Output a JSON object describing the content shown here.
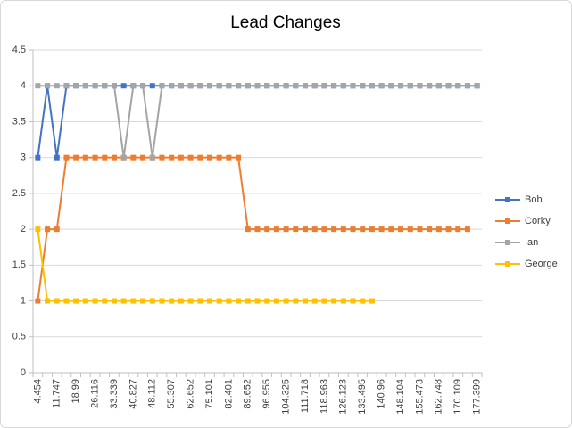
{
  "chart_data": {
    "type": "line",
    "title": "Lead Changes",
    "categories": [
      "4.454",
      null,
      "11.747",
      null,
      "18.99",
      null,
      "26.116",
      null,
      "33.339",
      null,
      "40.827",
      null,
      "48.112",
      null,
      "55.307",
      null,
      "62.652",
      null,
      "75.101",
      null,
      "82.401",
      null,
      "89.652",
      null,
      "96.955",
      null,
      "104.325",
      null,
      "111.718",
      null,
      "118.963",
      null,
      "126.123",
      null,
      "133.495",
      null,
      "140.96",
      null,
      "148.104",
      null,
      "155.473",
      null,
      "162.748",
      null,
      "170.109",
      null,
      "177.399"
    ],
    "series": [
      {
        "name": "Bob",
        "color": "#4472c4",
        "values": [
          3,
          4,
          3,
          4,
          4,
          4,
          4,
          4,
          4,
          4,
          4,
          4,
          4,
          4,
          4,
          4,
          4,
          4,
          4,
          4,
          4,
          4,
          4,
          4,
          4,
          4,
          4,
          4,
          4,
          4,
          4,
          4,
          4,
          4,
          4,
          4,
          4,
          4,
          4,
          4,
          4,
          4,
          4,
          4,
          4,
          4,
          4
        ]
      },
      {
        "name": "Corky",
        "color": "#ed7d31",
        "values": [
          1,
          2,
          2,
          3,
          3,
          3,
          3,
          3,
          3,
          3,
          3,
          3,
          3,
          3,
          3,
          3,
          3,
          3,
          3,
          3,
          3,
          3,
          2,
          2,
          2,
          2,
          2,
          2,
          2,
          2,
          2,
          2,
          2,
          2,
          2,
          2,
          2,
          2,
          2,
          2,
          2,
          2,
          2,
          2,
          2,
          2,
          null
        ]
      },
      {
        "name": "Ian",
        "color": "#a5a5a5",
        "values": [
          4,
          4,
          4,
          4,
          4,
          4,
          4,
          4,
          4,
          3,
          4,
          4,
          3,
          4,
          4,
          4,
          4,
          4,
          4,
          4,
          4,
          4,
          4,
          4,
          4,
          4,
          4,
          4,
          4,
          4,
          4,
          4,
          4,
          4,
          4,
          4,
          4,
          4,
          4,
          4,
          4,
          4,
          4,
          4,
          4,
          4,
          4
        ]
      },
      {
        "name": "George",
        "color": "#ffc000",
        "values": [
          2,
          1,
          1,
          1,
          1,
          1,
          1,
          1,
          1,
          1,
          1,
          1,
          1,
          1,
          1,
          1,
          1,
          1,
          1,
          1,
          1,
          1,
          1,
          1,
          1,
          1,
          1,
          1,
          1,
          1,
          1,
          1,
          1,
          1,
          1,
          1,
          null,
          null,
          null,
          null,
          null,
          null,
          null,
          null,
          null,
          null,
          null
        ]
      }
    ],
    "ylim": [
      0,
      4.5
    ],
    "yticks": [
      0,
      0.5,
      1,
      1.5,
      2,
      2.5,
      3,
      3.5,
      4,
      4.5
    ],
    "grid": true,
    "legend": "right"
  }
}
